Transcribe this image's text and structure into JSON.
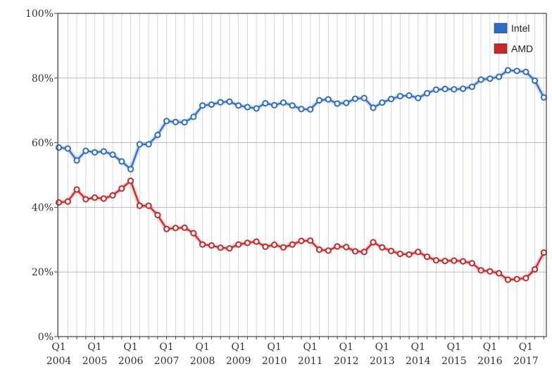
{
  "chart_data": {
    "type": "line",
    "x_start": 2004.0,
    "x_step": 0.25,
    "x_labels": [
      {
        "q": "Q1",
        "year": "2004",
        "x": 2004
      },
      {
        "q": "Q1",
        "year": "2005",
        "x": 2005
      },
      {
        "q": "Q1",
        "year": "2006",
        "x": 2006
      },
      {
        "q": "Q1",
        "year": "2007",
        "x": 2007
      },
      {
        "q": "Q1",
        "year": "2008",
        "x": 2008
      },
      {
        "q": "Q1",
        "year": "2009",
        "x": 2009
      },
      {
        "q": "Q1",
        "year": "2010",
        "x": 2010
      },
      {
        "q": "Q1",
        "year": "2011",
        "x": 2011
      },
      {
        "q": "Q1",
        "year": "2012",
        "x": 2012
      },
      {
        "q": "Q1",
        "year": "2013",
        "x": 2013
      },
      {
        "q": "Q1",
        "year": "2014",
        "x": 2014
      },
      {
        "q": "Q1",
        "year": "2015",
        "x": 2015
      },
      {
        "q": "Q1",
        "year": "2016",
        "x": 2016
      },
      {
        "q": "Q1",
        "year": "2017",
        "x": 2017
      }
    ],
    "y_ticks": [
      "0%",
      "20%",
      "40%",
      "60%",
      "80%",
      "100%"
    ],
    "ylim": [
      0,
      100
    ],
    "grid": true,
    "legend_position": "top-right",
    "series": [
      {
        "name": "Intel",
        "color": "#2f6dc4",
        "values": [
          58.5,
          58.2,
          54.5,
          57.5,
          57.0,
          57.3,
          56.3,
          54.2,
          51.8,
          59.5,
          59.5,
          62.4,
          66.7,
          66.4,
          66.3,
          68.0,
          71.5,
          71.8,
          72.5,
          72.7,
          71.5,
          71.0,
          70.6,
          72.2,
          71.6,
          72.4,
          71.5,
          70.4,
          70.3,
          73.1,
          73.4,
          72.1,
          72.3,
          73.6,
          73.8,
          70.8,
          72.4,
          73.5,
          74.4,
          74.6,
          73.8,
          75.3,
          76.4,
          76.6,
          76.5,
          76.7,
          77.3,
          79.5,
          79.8,
          80.4,
          82.4,
          82.2,
          81.9,
          79.2,
          74.0
        ]
      },
      {
        "name": "AMD",
        "color": "#c62828",
        "values": [
          41.5,
          41.8,
          45.5,
          42.5,
          43.0,
          42.7,
          43.7,
          45.8,
          48.2,
          40.5,
          40.5,
          37.6,
          33.3,
          33.6,
          33.7,
          32.0,
          28.5,
          28.2,
          27.5,
          27.3,
          28.5,
          29.0,
          29.4,
          27.8,
          28.4,
          27.6,
          28.5,
          29.6,
          29.7,
          26.9,
          26.6,
          27.9,
          27.7,
          26.4,
          26.2,
          29.2,
          27.6,
          26.5,
          25.6,
          25.4,
          26.2,
          24.7,
          23.6,
          23.4,
          23.5,
          23.3,
          22.7,
          20.5,
          20.2,
          19.6,
          17.6,
          17.8,
          18.1,
          20.8,
          26.0
        ]
      }
    ]
  }
}
